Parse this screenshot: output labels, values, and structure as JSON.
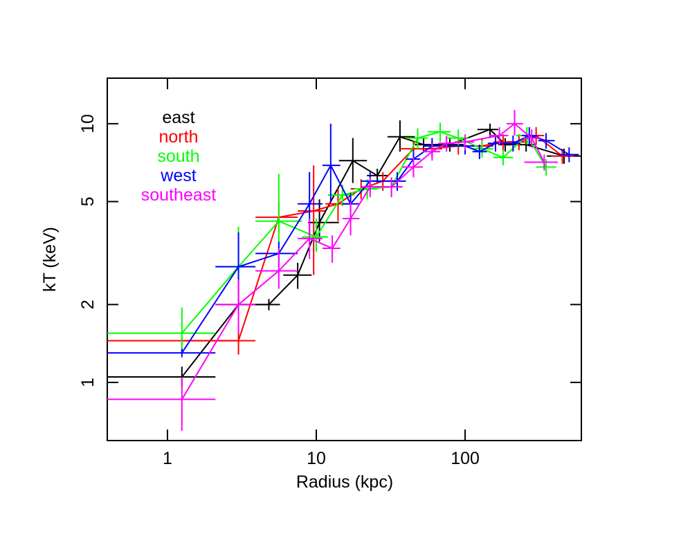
{
  "chart_data": {
    "type": "line",
    "x_label": "Radius (kpc)",
    "y_label": "kT (keV)",
    "xscale": "log",
    "yscale": "log",
    "xlim": [
      0.394,
      604
    ],
    "ylim": [
      0.596,
      15.0
    ],
    "xticks": [
      1,
      10,
      100
    ],
    "yticks": [
      1,
      2,
      5,
      10
    ],
    "series": [
      {
        "name": "east",
        "color": "#000000",
        "x": [
          1.25,
          3,
          4.8,
          7.5,
          10.5,
          17.6,
          25.7,
          36.5,
          52.6,
          79,
          147,
          186,
          257,
          462
        ],
        "values": [
          1.05,
          2.0,
          2.0,
          2.6,
          4.15,
          7.2,
          6.3,
          8.9,
          8.3,
          8.3,
          9.5,
          8.3,
          8.3,
          7.5
        ],
        "xmin": [
          0.394,
          2.1,
          3.9,
          6,
          8.8,
          14.2,
          21.9,
          30.1,
          46,
          60,
          121,
          167,
          230,
          354
        ],
        "xmax": [
          2.1,
          3.9,
          5.7,
          9.3,
          14.2,
          21.9,
          30.1,
          46,
          60,
          98,
          167,
          210,
          300,
          604
        ],
        "ymin": [
          0.96,
          1.9,
          1.9,
          2.3,
          3.5,
          5.9,
          5.9,
          7.8,
          7.8,
          7.8,
          8.8,
          7.8,
          7.8,
          7.0
        ],
        "ymax": [
          1.15,
          2.1,
          2.1,
          2.9,
          5.1,
          8.8,
          6.7,
          10.3,
          8.8,
          8.8,
          10.0,
          8.8,
          8.8,
          8.0
        ]
      },
      {
        "name": "north",
        "color": "#ff0000",
        "x": [
          1.25,
          3,
          5.6,
          9.6,
          14,
          20,
          28,
          45,
          60,
          90,
          130,
          180,
          230,
          300,
          450
        ],
        "values": [
          1.45,
          1.45,
          4.35,
          4.6,
          4.9,
          5.6,
          6.0,
          8.0,
          8.0,
          8.2,
          8.2,
          8.5,
          8.5,
          9.0,
          7.5
        ],
        "xmin": [
          0.394,
          2.1,
          3.9,
          7.5,
          11.5,
          17,
          24,
          36,
          52,
          75,
          110,
          155,
          205,
          265,
          380
        ],
        "xmax": [
          2.1,
          3.9,
          7.5,
          11.5,
          17,
          24,
          33,
          52,
          70,
          105,
          155,
          205,
          265,
          340,
          540
        ],
        "ymin": [
          1.4,
          1.28,
          3.8,
          2.6,
          4.2,
          5.1,
          5.5,
          7.4,
          7.4,
          7.6,
          7.6,
          7.9,
          7.9,
          8.3,
          7.0
        ],
        "ymax": [
          1.5,
          1.65,
          5.0,
          6.9,
          5.6,
          6.1,
          6.5,
          8.6,
          8.6,
          8.8,
          8.8,
          9.1,
          9.1,
          9.7,
          8.0
        ]
      },
      {
        "name": "south",
        "color": "#00ff00",
        "x": [
          1.25,
          3,
          5.6,
          10,
          15,
          22,
          32,
          48,
          68,
          90,
          130,
          180,
          260,
          350
        ],
        "values": [
          1.55,
          2.8,
          4.2,
          3.65,
          5.3,
          5.6,
          5.7,
          8.8,
          9.3,
          8.8,
          8.0,
          7.4,
          9.0,
          6.8
        ],
        "xmin": [
          0.394,
          2.1,
          3.9,
          8,
          12,
          18,
          26,
          40,
          56,
          76,
          110,
          155,
          220,
          300
        ],
        "xmax": [
          2.1,
          3.9,
          8,
          12,
          18,
          26,
          38,
          56,
          80,
          105,
          155,
          210,
          300,
          410
        ],
        "ymin": [
          1.3,
          2.0,
          3.5,
          3.2,
          4.8,
          5.1,
          5.2,
          8.0,
          8.5,
          8.1,
          7.4,
          6.9,
          8.3,
          6.3
        ],
        "ymax": [
          1.95,
          4.0,
          6.4,
          4.3,
          5.8,
          6.1,
          6.2,
          9.6,
          10.1,
          9.5,
          8.6,
          7.9,
          9.7,
          7.3
        ]
      },
      {
        "name": "west",
        "color": "#0000ff",
        "x": [
          1.25,
          3,
          5.6,
          9,
          12.5,
          17,
          23,
          35,
          45,
          60,
          100,
          125,
          160,
          210,
          270,
          350,
          500
        ],
        "values": [
          1.3,
          2.8,
          3.15,
          4.9,
          6.9,
          4.9,
          6.0,
          6.0,
          7.3,
          8.2,
          8.2,
          7.8,
          8.4,
          8.4,
          9.0,
          8.6,
          7.6
        ],
        "xmin": [
          0.394,
          2.1,
          3.9,
          7.5,
          11,
          15,
          20,
          30,
          40,
          52,
          85,
          112,
          142,
          185,
          240,
          310,
          430
        ],
        "xmax": [
          2.1,
          3.9,
          7.5,
          11,
          14.5,
          19.5,
          27,
          40,
          50,
          70,
          115,
          140,
          180,
          235,
          305,
          400,
          580
        ],
        "ymin": [
          1.25,
          2.0,
          2.8,
          3.7,
          5.0,
          4.4,
          5.5,
          5.5,
          6.7,
          7.6,
          7.6,
          7.3,
          7.8,
          7.8,
          8.3,
          8.0,
          7.1
        ],
        "ymax": [
          1.35,
          3.8,
          3.5,
          6.5,
          10.0,
          5.4,
          6.5,
          6.5,
          7.9,
          8.8,
          8.8,
          8.3,
          9.0,
          9.0,
          9.7,
          9.2,
          8.1
        ]
      },
      {
        "name": "southeast",
        "color": "#ff00ff",
        "x": [
          1.25,
          3,
          5.6,
          9,
          12.8,
          17,
          23,
          32,
          45,
          60,
          75,
          100,
          170,
          215,
          280,
          340
        ],
        "values": [
          0.86,
          2.0,
          2.7,
          3.6,
          3.3,
          4.3,
          5.7,
          5.7,
          6.8,
          7.8,
          8.4,
          8.5,
          9.0,
          10.0,
          8.8,
          7.1
        ],
        "xmin": [
          0.394,
          2.1,
          3.9,
          7.5,
          11,
          15,
          20,
          27,
          38,
          52,
          66,
          85,
          145,
          190,
          245,
          250
        ],
        "xmax": [
          2.1,
          3.9,
          7.5,
          11,
          14.5,
          19.5,
          27,
          38,
          52,
          68,
          85,
          115,
          195,
          245,
          320,
          420
        ],
        "ymin": [
          0.65,
          1.55,
          2.3,
          3.0,
          2.9,
          3.7,
          5.2,
          5.2,
          6.2,
          7.2,
          7.8,
          7.9,
          8.3,
          9.0,
          8.1,
          6.6
        ],
        "ymax": [
          1.05,
          2.5,
          3.3,
          4.3,
          3.7,
          5.0,
          6.2,
          6.2,
          7.4,
          8.4,
          9.0,
          9.1,
          9.7,
          11.3,
          9.5,
          7.6
        ]
      }
    ]
  }
}
